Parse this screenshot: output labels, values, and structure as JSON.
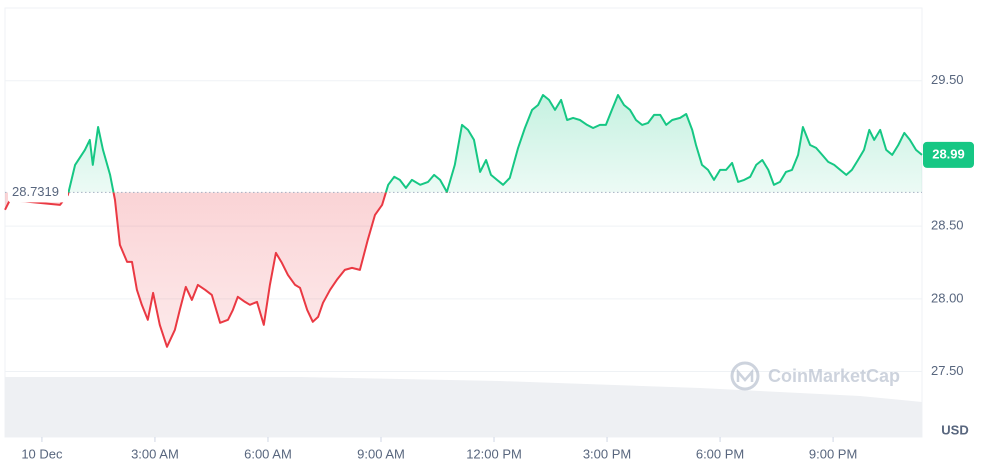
{
  "chart_data": {
    "type": "line",
    "x": [
      -0.98,
      -0.85,
      0.48,
      0.69,
      0.88,
      1.14,
      1.27,
      1.35,
      1.49,
      1.62,
      1.81,
      1.94,
      2.07,
      2.26,
      2.39,
      2.52,
      2.65,
      2.81,
      2.95,
      3.13,
      3.32,
      3.53,
      3.66,
      3.82,
      3.98,
      4.14,
      4.33,
      4.51,
      4.73,
      4.94,
      5.07,
      5.2,
      5.39,
      5.52,
      5.71,
      5.89,
      6.05,
      6.21,
      6.37,
      6.53,
      6.72,
      6.85,
      7.04,
      7.19,
      7.33,
      7.46,
      7.65,
      7.83,
      8.04,
      8.23,
      8.44,
      8.65,
      8.84,
      9.03,
      9.19,
      9.35,
      9.5,
      9.66,
      9.82,
      10.04,
      10.25,
      10.41,
      10.57,
      10.75,
      10.96,
      11.15,
      11.31,
      11.47,
      11.63,
      11.79,
      11.92,
      12.08,
      12.24,
      12.42,
      12.64,
      12.82,
      13.01,
      13.17,
      13.3,
      13.46,
      13.62,
      13.78,
      13.94,
      14.1,
      14.28,
      14.47,
      14.63,
      14.81,
      14.97,
      15.13,
      15.29,
      15.45,
      15.61,
      15.77,
      15.93,
      16.09,
      16.25,
      16.41,
      16.57,
      16.73,
      16.94,
      17.1,
      17.26,
      17.36,
      17.52,
      17.68,
      17.84,
      18.0,
      18.16,
      18.32,
      18.48,
      18.64,
      18.8,
      18.96,
      19.12,
      19.28,
      19.43,
      19.59,
      19.75,
      19.91,
      20.07,
      20.2,
      20.39,
      20.55,
      20.71,
      20.87,
      21.03,
      21.19,
      21.35,
      21.5,
      21.66,
      21.82,
      21.96,
      22.09,
      22.25,
      22.41,
      22.57,
      22.73,
      22.89,
      23.04,
      23.2,
      23.36
    ],
    "values": [
      28.612,
      28.68,
      28.646,
      28.715,
      28.921,
      29.024,
      29.093,
      28.921,
      29.182,
      29.024,
      28.852,
      28.68,
      28.371,
      28.254,
      28.254,
      28.062,
      27.959,
      27.856,
      28.041,
      27.821,
      27.67,
      27.787,
      27.924,
      28.082,
      27.993,
      28.096,
      28.062,
      28.027,
      27.835,
      27.856,
      27.924,
      28.014,
      27.979,
      27.959,
      27.979,
      27.821,
      28.096,
      28.316,
      28.247,
      28.165,
      28.096,
      28.076,
      27.924,
      27.842,
      27.876,
      27.973,
      28.062,
      28.131,
      28.199,
      28.213,
      28.199,
      28.406,
      28.577,
      28.646,
      28.784,
      28.839,
      28.818,
      28.763,
      28.818,
      28.784,
      28.804,
      28.852,
      28.818,
      28.735,
      28.921,
      29.196,
      29.162,
      29.093,
      28.873,
      28.955,
      28.852,
      28.818,
      28.784,
      28.832,
      29.038,
      29.175,
      29.299,
      29.333,
      29.402,
      29.368,
      29.299,
      29.368,
      29.23,
      29.244,
      29.23,
      29.196,
      29.175,
      29.196,
      29.196,
      29.299,
      29.402,
      29.333,
      29.299,
      29.23,
      29.196,
      29.21,
      29.265,
      29.265,
      29.196,
      29.23,
      29.244,
      29.271,
      29.162,
      29.058,
      28.921,
      28.887,
      28.818,
      28.887,
      28.887,
      28.935,
      28.804,
      28.818,
      28.839,
      28.921,
      28.955,
      28.887,
      28.784,
      28.804,
      28.873,
      28.887,
      28.99,
      29.182,
      29.058,
      29.038,
      28.99,
      28.942,
      28.921,
      28.887,
      28.852,
      28.887,
      28.955,
      29.024,
      29.162,
      29.093,
      29.162,
      29.024,
      28.99,
      29.058,
      29.141,
      29.093,
      29.024,
      28.99
    ],
    "baseline": 28.7319,
    "colors": {
      "above": "#16c784",
      "below": "#ea3943"
    },
    "xlim": [
      -0.98,
      23.36
    ],
    "ylim": [
      27.05,
      30.0
    ],
    "xticks": [
      {
        "value": 0,
        "label": "10 Dec"
      },
      {
        "value": 3,
        "label": "3:00 AM"
      },
      {
        "value": 6,
        "label": "6:00 AM"
      },
      {
        "value": 9,
        "label": "9:00 AM"
      },
      {
        "value": 12,
        "label": "12:00 PM"
      },
      {
        "value": 15,
        "label": "3:00 PM"
      },
      {
        "value": 18,
        "label": "6:00 PM"
      },
      {
        "value": 21,
        "label": "9:00 PM"
      }
    ],
    "yticks": [
      {
        "value": 27.5,
        "label": "27.50"
      },
      {
        "value": 28,
        "label": "28.00"
      },
      {
        "value": 28.5,
        "label": "28.50"
      },
      {
        "value": 29.5,
        "label": "29.50"
      }
    ],
    "y_unit": "USD",
    "grid": true,
    "watermark": "CoinMarketCap"
  }
}
